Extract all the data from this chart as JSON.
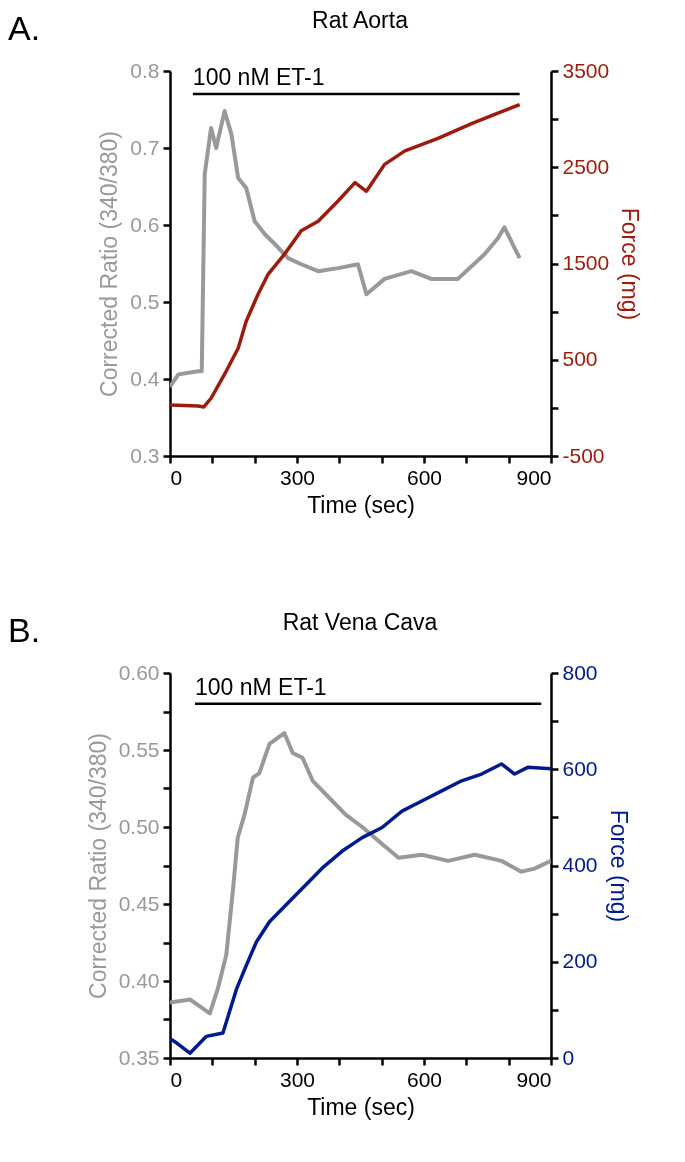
{
  "chart_data": [
    {
      "type": "line",
      "title": "Rat Aorta",
      "xlabel": "Time (sec)",
      "ylabel": "Corrected Ratio (340/380)",
      "y2label": "Force (mg)",
      "xlim": [
        0,
        900
      ],
      "xticks": [
        0,
        {
          "value": 100,
          "label": null
        },
        {
          "value": 200,
          "label": null
        },
        300,
        {
          "value": 400,
          "label": null
        },
        {
          "value": 500,
          "label": null
        },
        600,
        {
          "value": 700,
          "label": null
        },
        {
          "value": 800,
          "label": null
        },
        900
      ],
      "ylim": [
        0.3,
        0.8
      ],
      "yticks": [
        0.3,
        0.4,
        0.5,
        0.6,
        0.7,
        0.8
      ],
      "y2lim": [
        -500,
        3500
      ],
      "y2ticks": [
        -500,
        {
          "value": 0,
          "label": null
        },
        500,
        {
          "value": 1000,
          "label": null
        },
        1500,
        {
          "value": 2000,
          "label": null
        },
        2500,
        {
          "value": 3000,
          "label": null
        },
        3500
      ],
      "grid": false,
      "annotations": [
        "A.",
        {
          "text": "100 nM ET-1",
          "x": 54,
          "y": 0.77
        }
      ],
      "series": [
        {
          "color": "#999999",
          "x": [
            0,
            20,
            66,
            75,
            82,
            97,
            109,
            129,
            145,
            161,
            180,
            200,
            224,
            248,
            279,
            310,
            350,
            397,
            444,
            464,
            507,
            570,
            617,
            680,
            743,
            775,
            790,
            814,
            826
          ],
          "values": [
            0.39,
            0.406,
            0.41,
            0.41,
            0.666,
            0.726,
            0.7,
            0.748,
            0.718,
            0.661,
            0.648,
            0.605,
            0.588,
            0.575,
            0.557,
            0.549,
            0.54,
            0.544,
            0.549,
            0.51,
            0.53,
            0.54,
            0.53,
            0.53,
            0.562,
            0.583,
            0.597,
            0.57,
            0.557
          ]
        },
        {
          "color": "#9b1b0e",
          "axis": "y2",
          "x": [
            0,
            66,
            80,
            97,
            129,
            161,
            180,
            208,
            232,
            271,
            310,
            350,
            397,
            437,
            464,
            507,
            555,
            633,
            711,
            767,
            826
          ],
          "values": [
            30,
            20,
            10,
            100,
            350,
            620,
            900,
            1180,
            1390,
            1600,
            1840,
            1940,
            2150,
            2340,
            2250,
            2530,
            2670,
            2800,
            2950,
            3050,
            3150
          ]
        },
        {
          "color": "#000000",
          "x": [
            54,
            826
          ],
          "values": [
            0.77,
            0.77
          ]
        }
      ]
    },
    {
      "type": "line",
      "title": "Rat Vena Cava",
      "xlabel": "Time (sec)",
      "ylabel": "Corrected Ratio (340/380)",
      "y2label": "Force (mg)",
      "xlim": [
        0,
        900
      ],
      "xticks": [
        0,
        {
          "value": 100,
          "label": null
        },
        {
          "value": 200,
          "label": null
        },
        300,
        {
          "value": 400,
          "label": null
        },
        {
          "value": 500,
          "label": null
        },
        600,
        {
          "value": 700,
          "label": null
        },
        {
          "value": 800,
          "label": null
        },
        900
      ],
      "ylim": [
        0.35,
        0.6
      ],
      "yticks": [
        {
          "value": 0.35,
          "label": "0.35"
        },
        {
          "value": 0.375,
          "label": null
        },
        {
          "value": 0.4,
          "label": "0.40"
        },
        {
          "value": 0.425,
          "label": null
        },
        {
          "value": 0.45,
          "label": "0.45"
        },
        {
          "value": 0.475,
          "label": null
        },
        {
          "value": 0.5,
          "label": "0.50"
        },
        {
          "value": 0.525,
          "label": null
        },
        {
          "value": 0.55,
          "label": "0.55"
        },
        {
          "value": 0.575,
          "label": null
        },
        {
          "value": 0.6,
          "label": "0.60"
        }
      ],
      "y2lim": [
        0,
        800
      ],
      "y2ticks": [
        0,
        {
          "value": 100,
          "label": null
        },
        200,
        {
          "value": 300,
          "label": null
        },
        400,
        {
          "value": 500,
          "label": null
        },
        600,
        {
          "value": 700,
          "label": null
        },
        800
      ],
      "grid": false,
      "annotations": [
        "B.",
        {
          "text": "100 nM ET-1",
          "x": 59,
          "y": 0.58
        }
      ],
      "series": [
        {
          "color": "#999999",
          "x": [
            0,
            47,
            94,
            113,
            133,
            149,
            160,
            176,
            196,
            211,
            235,
            270,
            290,
            313,
            337,
            376,
            415,
            454,
            501,
            540,
            595,
            657,
            720,
            783,
            830,
            861,
            900
          ],
          "values": [
            0.386,
            0.388,
            0.379,
            0.395,
            0.417,
            0.46,
            0.493,
            0.508,
            0.532,
            0.535,
            0.554,
            0.561,
            0.548,
            0.545,
            0.53,
            0.519,
            0.508,
            0.5,
            0.489,
            0.48,
            0.482,
            0.478,
            0.482,
            0.478,
            0.471,
            0.473,
            0.478
          ]
        },
        {
          "color": "#001a8c",
          "axis": "y2",
          "x": [
            0,
            16,
            47,
            86,
            125,
            157,
            180,
            204,
            235,
            282,
            321,
            360,
            407,
            454,
            501,
            548,
            595,
            642,
            689,
            736,
            783,
            814,
            845,
            900
          ],
          "values": [
            40,
            31,
            10,
            45,
            52,
            143,
            192,
            241,
            283,
            325,
            360,
            395,
            430,
            458,
            479,
            513,
            534,
            555,
            576,
            590,
            611,
            590,
            604,
            601
          ]
        },
        {
          "color": "#000000",
          "x": [
            59,
            877
          ],
          "values": [
            0.58,
            0.58
          ]
        }
      ]
    }
  ]
}
